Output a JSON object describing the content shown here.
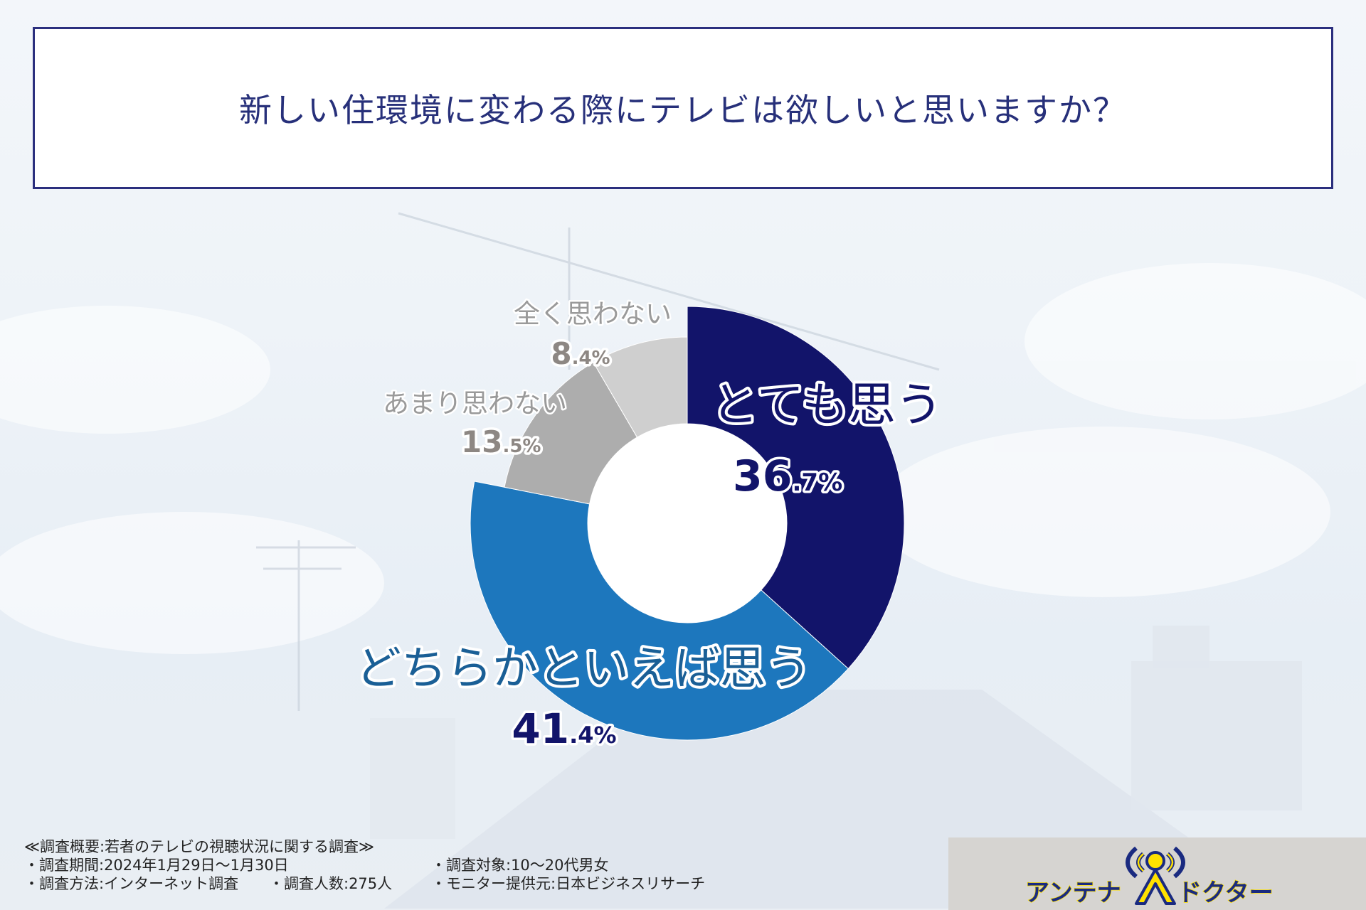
{
  "title": "新しい住環境に変わる際にテレビは欲しいと思いますか？",
  "chart_data": {
    "type": "pie",
    "style": "donut",
    "title": "新しい住環境に変わる際にテレビは欲しいと思いますか？",
    "categories": [
      "とても思う",
      "どちらかといえば思う",
      "あまり思わない",
      "全く思わない"
    ],
    "values": [
      36.7,
      41.4,
      13.5,
      8.4
    ],
    "value_labels": [
      {
        "int": "36",
        "dec": ".7%"
      },
      {
        "int": "41",
        "dec": ".4%"
      },
      {
        "int": "13",
        "dec": ".5%"
      },
      {
        "int": "8",
        "dec": ".4%"
      }
    ],
    "colors": [
      "#12146a",
      "#1d77bd",
      "#adadad",
      "#cfcfcf"
    ],
    "label_colors": [
      "#12146a",
      "#1a5f96",
      "#9a9a9a",
      "#9a9a9a"
    ],
    "value_colors": [
      "#12146a",
      "#12146a",
      "#8d8783",
      "#8d8783"
    ],
    "start_angle": "12 o'clock, clockwise"
  },
  "footer": {
    "summary": "≪調査概要:若者のテレビの視聴状況に関する調査≫",
    "period": "・調査期間:2024年1月29日～1月30日",
    "target": "・調査対象:10～20代男女",
    "method": "・調査方法:インターネット調査",
    "count": "・調査人数:275人",
    "provider": "・モニター提供元:日本ビジネスリサーチ"
  },
  "logo": {
    "text": "アンテナ",
    "text2": "ドクター",
    "letter": "A",
    "colors": {
      "navy": "#1a2a80",
      "yellow": "#ffe100"
    }
  }
}
